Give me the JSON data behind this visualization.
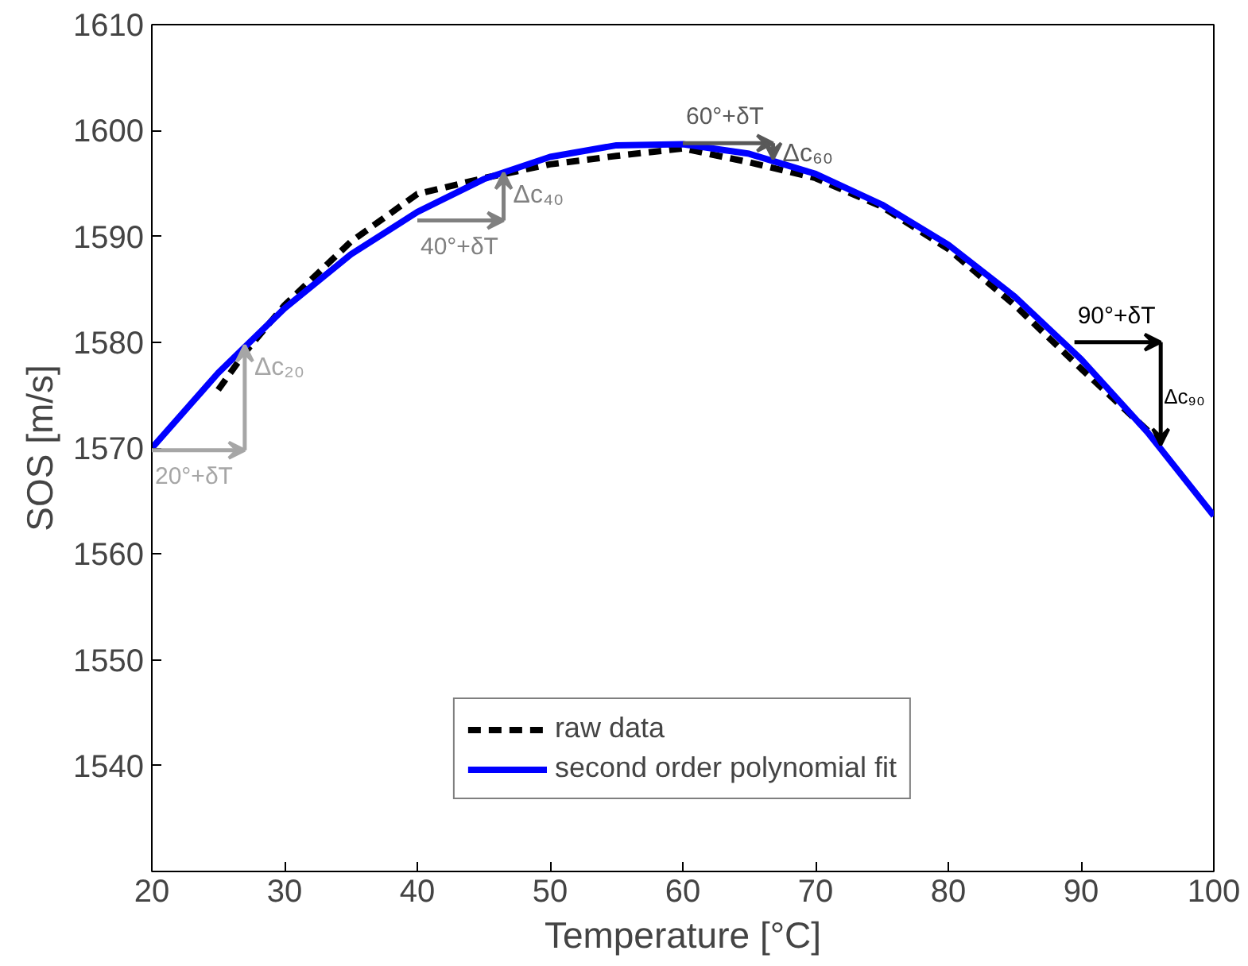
{
  "chart_data": {
    "type": "line",
    "xlabel": "Temperature [°C]",
    "ylabel": "SOS [m/s]",
    "xlim": [
      20,
      100
    ],
    "xticks": [
      20,
      30,
      40,
      50,
      60,
      70,
      80,
      90,
      100
    ],
    "ylim": [
      1530,
      1610
    ],
    "yticks": [
      {
        "value": 1530,
        "label": null
      },
      1540,
      1550,
      1560,
      1570,
      1580,
      1590,
      1600,
      1610
    ],
    "grid": false,
    "legend": "bottom",
    "marker": "none",
    "series": [
      {
        "name": "raw data",
        "color": "#000000",
        "line_style": "dashed",
        "x": [
          25,
          27,
          30,
          35,
          40,
          45,
          50,
          55,
          60,
          65,
          70,
          75,
          80,
          85,
          90,
          96
        ],
        "values": [
          1575.5,
          1579,
          1583.5,
          1589.5,
          1594,
          1595.5,
          1596.8,
          1597.6,
          1598.3,
          1597,
          1595.5,
          1592.8,
          1588.8,
          1583.5,
          1577.5,
          1570.5
        ]
      },
      {
        "name": "second order polynomial fit",
        "color": "#0000ff",
        "line_style": "solid",
        "x": [
          20,
          25,
          30,
          35,
          40,
          45,
          50,
          55,
          60,
          65,
          70,
          75,
          80,
          85,
          90,
          95,
          100
        ],
        "values": [
          1570.0,
          1577.1,
          1583.2,
          1588.3,
          1592.3,
          1595.4,
          1597.5,
          1598.6,
          1598.7,
          1597.8,
          1595.9,
          1593.0,
          1589.2,
          1584.3,
          1578.4,
          1571.5,
          1563.6
        ]
      }
    ],
    "annotations": [
      {
        "text": "20°+δT",
        "x": 20,
        "y": 1569.8
      },
      {
        "text": "Δc₂₀",
        "x": 27,
        "y": 1579.7
      },
      {
        "text": "40°+δT",
        "x": 40,
        "y": 1591.5
      },
      {
        "text": "Δc₄₀",
        "x": 46.5,
        "y": 1596
      },
      {
        "text": "60°+δT",
        "x": 60,
        "y": 1598.8
      },
      {
        "text": "Δc₆₀",
        "x": 66.8,
        "y": 1597.3
      },
      {
        "text": "90°+δT",
        "x": 89.5,
        "y": 1580
      },
      {
        "text": "Δc₉₀",
        "x": 96,
        "y": 1570.3
      }
    ]
  }
}
